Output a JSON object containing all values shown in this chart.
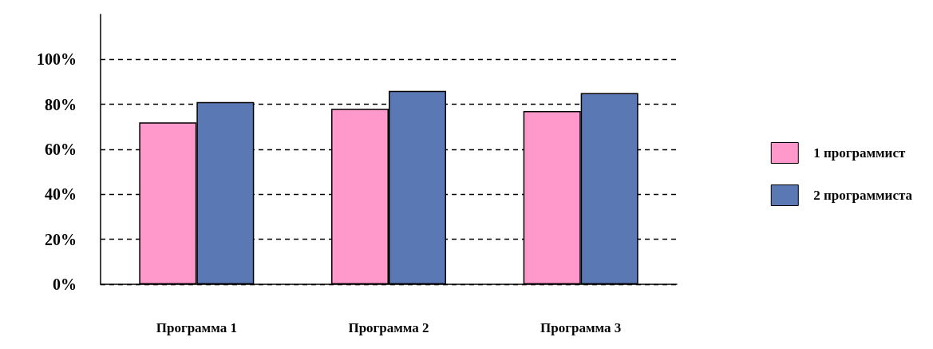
{
  "chart_data": {
    "type": "bar",
    "categories": [
      "Программа 1",
      "Программа 2",
      "Программа 3"
    ],
    "series": [
      {
        "name": "1 программист",
        "color": "#ff99cc",
        "values": [
          72,
          78,
          77
        ]
      },
      {
        "name": "2 программиста",
        "color": "#5a78b4",
        "values": [
          81,
          86,
          85
        ]
      }
    ],
    "ylim": [
      0,
      120
    ],
    "yticks": [
      {
        "value": 0,
        "label": "0%"
      },
      {
        "value": 20,
        "label": "20%"
      },
      {
        "value": 40,
        "label": "40%"
      },
      {
        "value": 60,
        "label": "60%"
      },
      {
        "value": 80,
        "label": "80%"
      },
      {
        "value": 100,
        "label": "100%"
      }
    ],
    "grid": "y",
    "legend": "right"
  }
}
